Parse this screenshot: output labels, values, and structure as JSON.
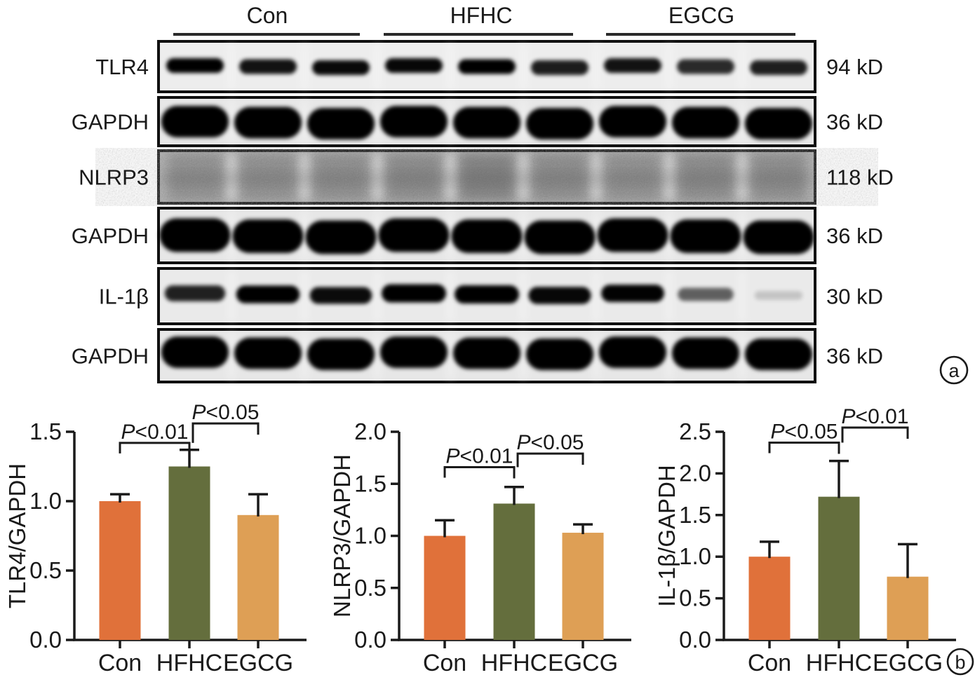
{
  "blots": {
    "panel_letter": "a",
    "lanes_per_group": 3,
    "total_lanes": 9,
    "groups": [
      {
        "label": "Con"
      },
      {
        "label": "HFHC"
      },
      {
        "label": "EGCG"
      }
    ],
    "panels": [
      {
        "protein": "TLR4",
        "weight": "94 kD",
        "style": "sharp",
        "intensities": [
          0.98,
          0.9,
          0.94,
          0.95,
          1.0,
          0.86,
          0.9,
          0.8,
          0.85
        ]
      },
      {
        "protein": "GAPDH",
        "weight": "36 kD",
        "style": "thick",
        "intensities": [
          1,
          1,
          1,
          1,
          1,
          1,
          1,
          1,
          1
        ]
      },
      {
        "protein": "NLRP3",
        "weight": "118 kD",
        "style": "smear",
        "intensities": [
          0.42,
          0.46,
          0.5,
          0.58,
          0.8,
          0.55,
          0.45,
          0.58,
          0.52
        ]
      },
      {
        "protein": "GAPDH",
        "weight": "36 kD",
        "style": "thick",
        "intensities": [
          1,
          1,
          1,
          1,
          1,
          1,
          1,
          1,
          1
        ]
      },
      {
        "protein": "IL-1β",
        "weight": "30 kD",
        "style": "fading",
        "intensities": [
          0.8,
          0.95,
          0.88,
          1.0,
          1.0,
          0.9,
          0.92,
          0.55,
          0.15
        ]
      },
      {
        "protein": "GAPDH",
        "weight": "36 kD",
        "style": "thick",
        "intensities": [
          1,
          1,
          1,
          1,
          1,
          1,
          1,
          1,
          1
        ]
      }
    ]
  },
  "chart_data": [
    {
      "type": "bar",
      "ylabel": "TLR4/GAPDH",
      "categories": [
        "Con",
        "HFHC",
        "EGCG"
      ],
      "values": [
        1.0,
        1.25,
        0.9
      ],
      "errors": [
        0.05,
        0.12,
        0.15
      ],
      "ylim": [
        0,
        1.5
      ],
      "yticks": [
        0,
        0.5,
        1.0,
        1.5
      ],
      "ytick_labels": [
        "0.0",
        "0.5",
        "1.0",
        "1.5"
      ],
      "bar_colors": [
        "#E0713A",
        "#646E3D",
        "#DE9F55"
      ],
      "grid": false,
      "legend": false,
      "significance": [
        {
          "between": [
            "Con",
            "HFHC"
          ],
          "from": 0,
          "to": 1,
          "label": "P<0.01",
          "y": 1.42
        },
        {
          "between": [
            "HFHC",
            "EGCG"
          ],
          "from": 1,
          "to": 2,
          "label": "P<0.05",
          "y": 1.56
        }
      ]
    },
    {
      "type": "bar",
      "ylabel": "NLRP3/GAPDH",
      "categories": [
        "Con",
        "HFHC",
        "EGCG"
      ],
      "values": [
        1.0,
        1.31,
        1.03
      ],
      "errors": [
        0.15,
        0.16,
        0.08
      ],
      "ylim": [
        0,
        2.0
      ],
      "yticks": [
        0,
        0.5,
        1.0,
        1.5,
        2.0
      ],
      "ytick_labels": [
        "0.0",
        "0.5",
        "1.0",
        "1.5",
        "2.0"
      ],
      "bar_colors": [
        "#E0713A",
        "#646E3D",
        "#DE9F55"
      ],
      "grid": false,
      "legend": false,
      "significance": [
        {
          "between": [
            "Con",
            "HFHC"
          ],
          "from": 0,
          "to": 1,
          "label": "P<0.01",
          "y": 1.66
        },
        {
          "between": [
            "HFHC",
            "EGCG"
          ],
          "from": 1,
          "to": 2,
          "label": "P<0.05",
          "y": 1.79
        }
      ]
    },
    {
      "type": "bar",
      "ylabel": "IL-1β/GAPDH",
      "panel_letter": "b",
      "categories": [
        "Con",
        "HFHC",
        "EGCG"
      ],
      "values": [
        1.0,
        1.72,
        0.76
      ],
      "errors": [
        0.18,
        0.43,
        0.39
      ],
      "ylim": [
        0,
        2.5
      ],
      "yticks": [
        0,
        0.5,
        1.0,
        1.5,
        2.0,
        2.5
      ],
      "ytick_labels": [
        "0.0",
        "0.5",
        "1.0",
        "1.5",
        "2.0",
        "2.5"
      ],
      "bar_colors": [
        "#E0713A",
        "#646E3D",
        "#DE9F55"
      ],
      "grid": false,
      "legend": false,
      "significance": [
        {
          "between": [
            "Con",
            "HFHC"
          ],
          "from": 0,
          "to": 1,
          "label": "P<0.05",
          "y": 2.37
        },
        {
          "between": [
            "HFHC",
            "EGCG"
          ],
          "from": 1,
          "to": 2,
          "label": "P<0.01",
          "y": 2.55
        }
      ]
    }
  ],
  "colors": {
    "bar_con": "#E0713A",
    "bar_hfhc": "#646E3D",
    "bar_egcg": "#DE9F55",
    "axis": "#1a1a1a",
    "blot_border": "#101010"
  }
}
